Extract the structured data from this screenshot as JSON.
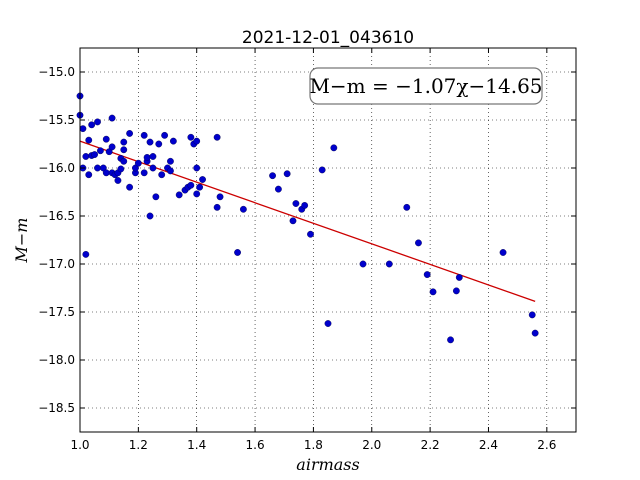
{
  "chart_data": {
    "type": "scatter",
    "title": "2021-12-01_043610",
    "xlabel": "airmass",
    "ylabel": "M−m",
    "xlim": [
      1.0,
      2.7
    ],
    "ylim": [
      -18.75,
      -14.75
    ],
    "grid": true,
    "x_ticks": [
      1.0,
      1.2,
      1.4,
      1.6,
      1.8,
      2.0,
      2.2,
      2.4,
      2.6
    ],
    "x_tick_labels": [
      "1.0",
      "1.2",
      "1.4",
      "1.6",
      "1.8",
      "2.0",
      "2.2",
      "2.4",
      "2.6"
    ],
    "y_ticks": [
      -15.0,
      -15.5,
      -16.0,
      -16.5,
      -17.0,
      -17.5,
      -18.0,
      -18.5
    ],
    "y_tick_labels": [
      "−15.0",
      "−15.5",
      "−16.0",
      "−16.5",
      "−17.0",
      "−17.5",
      "−18.0",
      "−18.5"
    ],
    "annotation": "M−m = −1.07χ−14.65",
    "fit": {
      "slope": -1.07,
      "intercept": -14.65,
      "x_range": [
        1.0,
        2.56
      ],
      "color": "#cc0000"
    },
    "marker_color": "#0000cc",
    "points": [
      [
        1.0,
        -15.25
      ],
      [
        1.0,
        -15.45
      ],
      [
        1.01,
        -15.59
      ],
      [
        1.01,
        -16.0
      ],
      [
        1.02,
        -15.88
      ],
      [
        1.02,
        -16.9
      ],
      [
        1.03,
        -15.71
      ],
      [
        1.03,
        -16.07
      ],
      [
        1.04,
        -15.87
      ],
      [
        1.04,
        -15.55
      ],
      [
        1.05,
        -15.86
      ],
      [
        1.06,
        -15.52
      ],
      [
        1.06,
        -16.0
      ],
      [
        1.07,
        -15.82
      ],
      [
        1.08,
        -16.0
      ],
      [
        1.09,
        -15.7
      ],
      [
        1.09,
        -16.05
      ],
      [
        1.1,
        -15.83
      ],
      [
        1.11,
        -15.48
      ],
      [
        1.11,
        -15.78
      ],
      [
        1.11,
        -16.05
      ],
      [
        1.12,
        -16.07
      ],
      [
        1.13,
        -16.13
      ],
      [
        1.13,
        -16.05
      ],
      [
        1.14,
        -15.9
      ],
      [
        1.14,
        -16.01
      ],
      [
        1.15,
        -15.73
      ],
      [
        1.15,
        -15.81
      ],
      [
        1.15,
        -15.93
      ],
      [
        1.17,
        -15.64
      ],
      [
        1.17,
        -16.2
      ],
      [
        1.19,
        -16.05
      ],
      [
        1.19,
        -16.0
      ],
      [
        1.2,
        -15.95
      ],
      [
        1.22,
        -15.66
      ],
      [
        1.22,
        -16.05
      ],
      [
        1.23,
        -15.93
      ],
      [
        1.23,
        -15.89
      ],
      [
        1.24,
        -15.73
      ],
      [
        1.24,
        -16.5
      ],
      [
        1.25,
        -15.88
      ],
      [
        1.25,
        -16.0
      ],
      [
        1.26,
        -16.3
      ],
      [
        1.27,
        -15.75
      ],
      [
        1.28,
        -16.07
      ],
      [
        1.29,
        -15.66
      ],
      [
        1.3,
        -16.0
      ],
      [
        1.31,
        -15.93
      ],
      [
        1.31,
        -16.03
      ],
      [
        1.32,
        -15.72
      ],
      [
        1.34,
        -16.28
      ],
      [
        1.36,
        -16.23
      ],
      [
        1.37,
        -16.2
      ],
      [
        1.38,
        -15.68
      ],
      [
        1.38,
        -16.18
      ],
      [
        1.39,
        -15.75
      ],
      [
        1.4,
        -15.72
      ],
      [
        1.4,
        -16.0
      ],
      [
        1.4,
        -16.27
      ],
      [
        1.41,
        -16.2
      ],
      [
        1.42,
        -16.12
      ],
      [
        1.47,
        -15.68
      ],
      [
        1.47,
        -16.41
      ],
      [
        1.48,
        -16.3
      ],
      [
        1.54,
        -16.88
      ],
      [
        1.56,
        -16.43
      ],
      [
        1.66,
        -16.08
      ],
      [
        1.68,
        -16.22
      ],
      [
        1.71,
        -16.06
      ],
      [
        1.73,
        -16.55
      ],
      [
        1.74,
        -16.37
      ],
      [
        1.76,
        -16.43
      ],
      [
        1.77,
        -16.39
      ],
      [
        1.79,
        -16.69
      ],
      [
        1.83,
        -16.02
      ],
      [
        1.85,
        -17.62
      ],
      [
        1.87,
        -15.79
      ],
      [
        1.97,
        -17.0
      ],
      [
        2.06,
        -17.0
      ],
      [
        2.12,
        -16.41
      ],
      [
        2.16,
        -16.78
      ],
      [
        2.19,
        -17.11
      ],
      [
        2.21,
        -17.29
      ],
      [
        2.27,
        -17.79
      ],
      [
        2.29,
        -17.28
      ],
      [
        2.3,
        -17.14
      ],
      [
        2.45,
        -16.88
      ],
      [
        2.55,
        -17.53
      ],
      [
        2.56,
        -17.72
      ]
    ]
  }
}
